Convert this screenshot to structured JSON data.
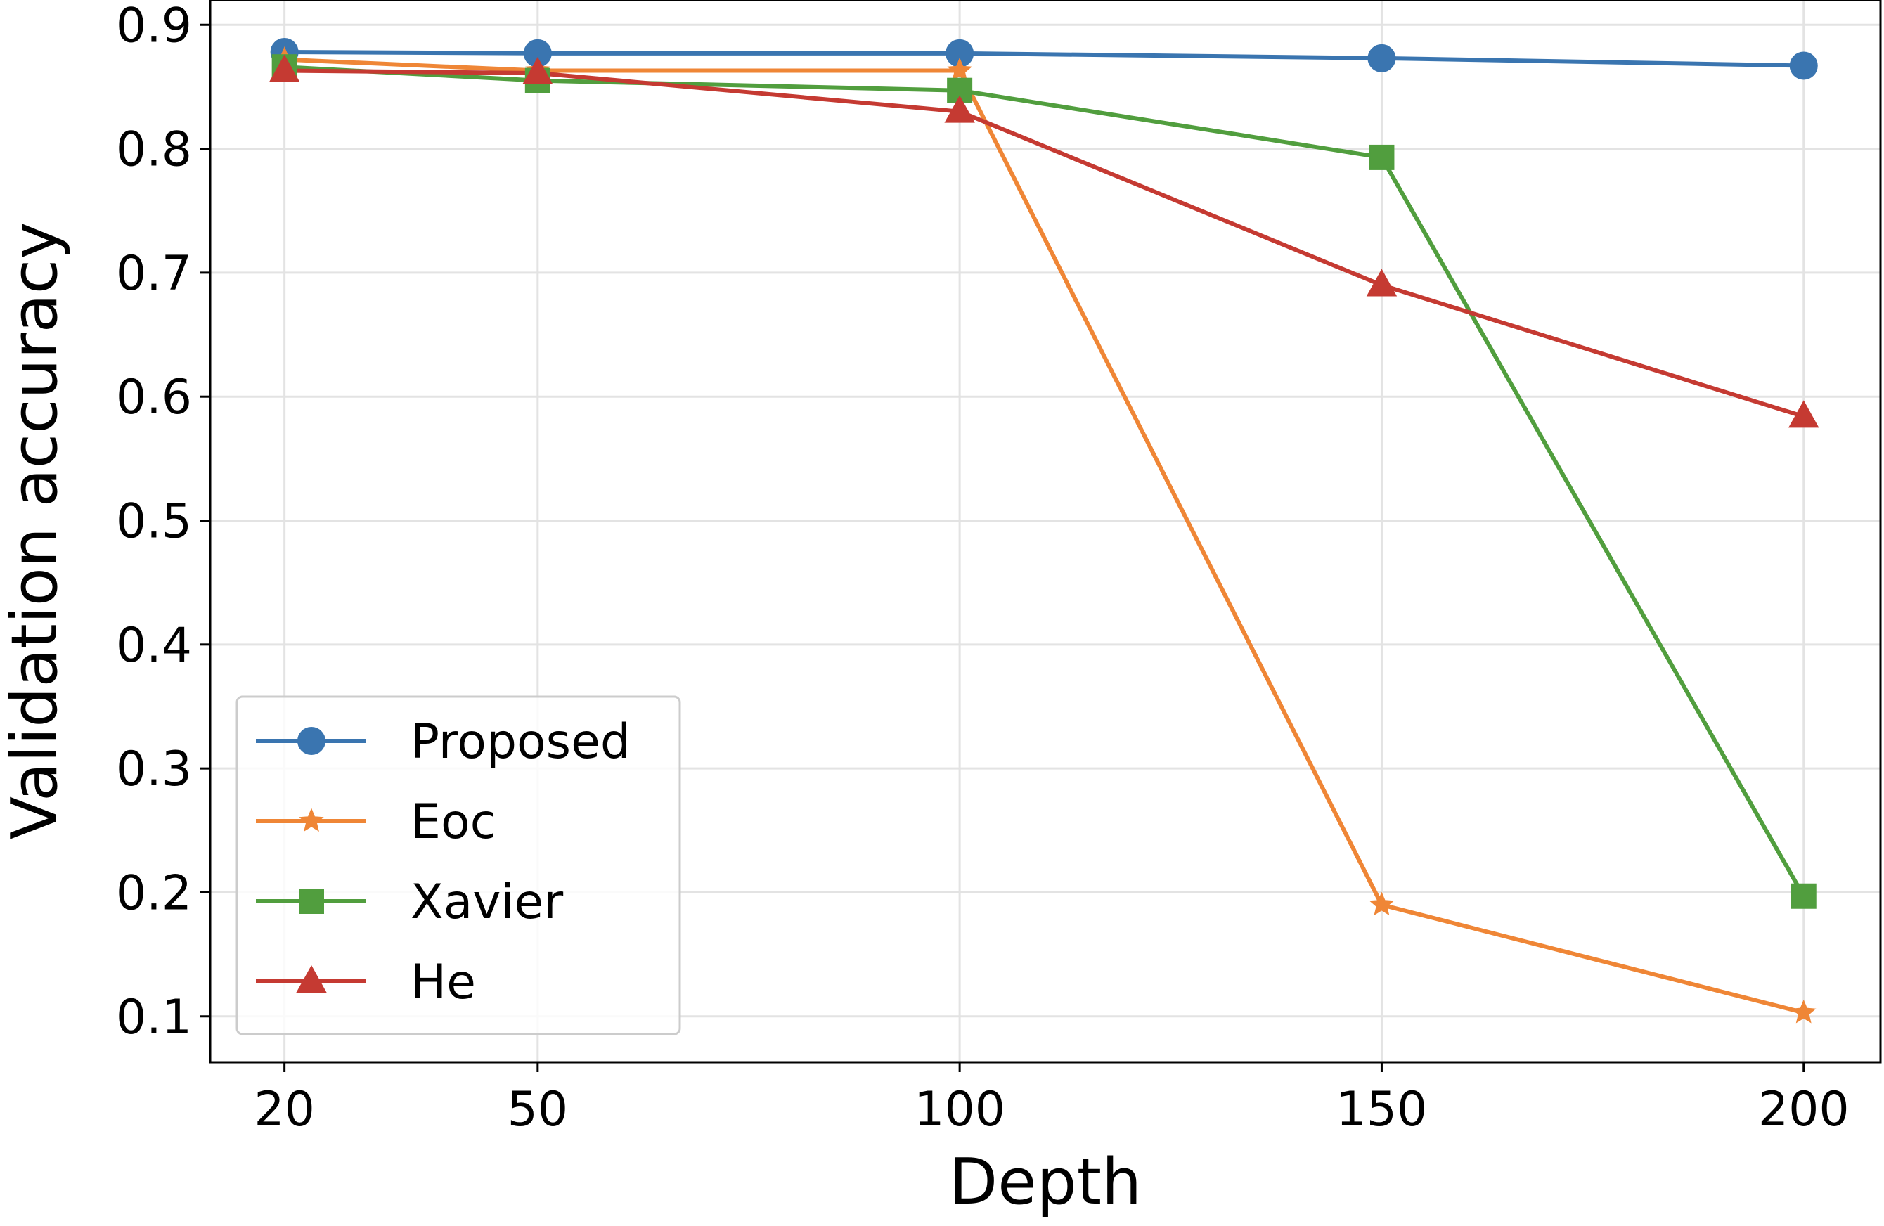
{
  "chart_data": {
    "type": "line",
    "x_label": "Depth",
    "y_label": "Validation accuracy",
    "x": [
      20,
      50,
      100,
      150,
      200
    ],
    "series": [
      {
        "name": "Proposed",
        "color": "#3a75b0",
        "marker": "circle",
        "values": [
          0.878,
          0.877,
          0.877,
          0.873,
          0.867
        ]
      },
      {
        "name": "Eoc",
        "color": "#ef8636",
        "marker": "star",
        "values": [
          0.872,
          0.863,
          0.863,
          0.19,
          0.103
        ]
      },
      {
        "name": "Xavier",
        "color": "#519e3e",
        "marker": "square",
        "values": [
          0.866,
          0.855,
          0.847,
          0.793,
          0.197
        ]
      },
      {
        "name": "He",
        "color": "#c53a32",
        "marker": "triangle",
        "values": [
          0.863,
          0.861,
          0.83,
          0.69,
          0.584
        ]
      }
    ],
    "xlim": [
      11.2,
      209.1
    ],
    "ylim": [
      0.063,
      0.92
    ],
    "xticks": [
      20,
      50,
      100,
      150,
      200
    ],
    "yticks": [
      0.1,
      0.2,
      0.3,
      0.4,
      0.5,
      0.6,
      0.7,
      0.8,
      0.9
    ],
    "grid": true,
    "legend": "lower left"
  }
}
